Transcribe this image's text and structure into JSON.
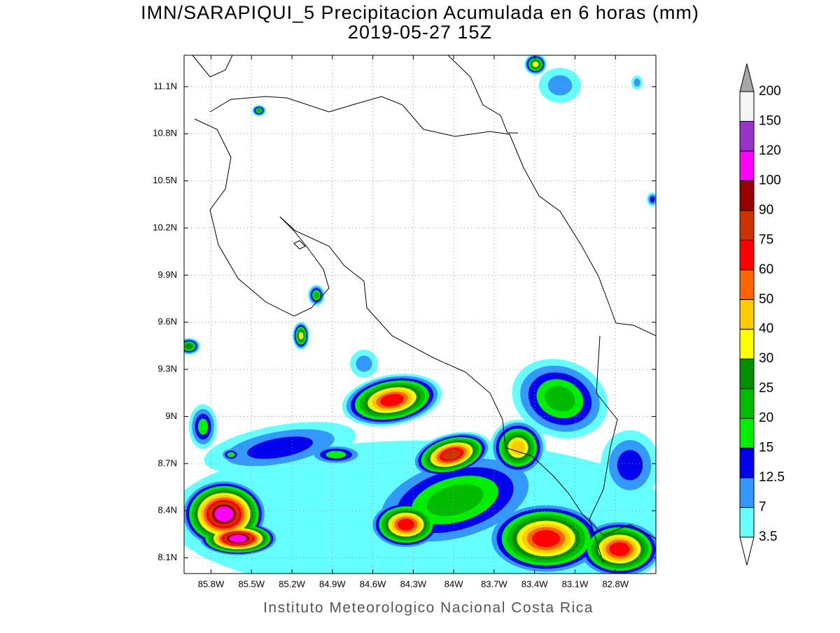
{
  "title": "IMN/SARAPIQUI_5 Precipitacion Acumulada en 6 horas (mm)",
  "subtitle": "2019-05-27 15Z",
  "footer": "Instituto Meteorologico Nacional Costa Rica",
  "map": {
    "lonlim": [
      -86,
      -82.5
    ],
    "latlim": [
      8.0,
      11.3
    ],
    "grid": true,
    "xticks": [
      {
        "value": -85.8,
        "label": "85.8W"
      },
      {
        "value": -85.5,
        "label": "85.5W"
      },
      {
        "value": -85.2,
        "label": "85.2W"
      },
      {
        "value": -84.9,
        "label": "84.9W"
      },
      {
        "value": -84.6,
        "label": "84.6W"
      },
      {
        "value": -84.3,
        "label": "84.3W"
      },
      {
        "value": -84,
        "label": "84W"
      },
      {
        "value": -83.7,
        "label": "83.7W"
      },
      {
        "value": -83.4,
        "label": "83.4W"
      },
      {
        "value": -83.1,
        "label": "83.1W"
      },
      {
        "value": -82.8,
        "label": "82.8W"
      }
    ],
    "yticks": [
      {
        "value": 8.1,
        "label": "8.1N"
      },
      {
        "value": 8.4,
        "label": "8.4N"
      },
      {
        "value": 8.7,
        "label": "8.7N"
      },
      {
        "value": 9,
        "label": "9N"
      },
      {
        "value": 9.3,
        "label": "9.3N"
      },
      {
        "value": 9.6,
        "label": "9.6N"
      },
      {
        "value": 9.9,
        "label": "9.9N"
      },
      {
        "value": 10.2,
        "label": "10.2N"
      },
      {
        "value": 10.5,
        "label": "10.5N"
      },
      {
        "value": 10.8,
        "label": "10.8N"
      },
      {
        "value": 11.1,
        "label": "11.1N"
      }
    ]
  },
  "colorbar": {
    "levels": [
      3.5,
      7,
      12.5,
      15,
      20,
      25,
      30,
      40,
      50,
      60,
      75,
      90,
      100,
      120,
      150,
      200
    ],
    "colors": [
      "#ffffff",
      "#66ffff",
      "#3399ff",
      "#0000ee",
      "#00ee00",
      "#00bb00",
      "#008f00",
      "#ffff00",
      "#ffcc00",
      "#ff6600",
      "#ff0000",
      "#cc3300",
      "#990000",
      "#ff00ff",
      "#9933cc",
      "#f5f5f5",
      "#a6a6a6"
    ]
  }
}
